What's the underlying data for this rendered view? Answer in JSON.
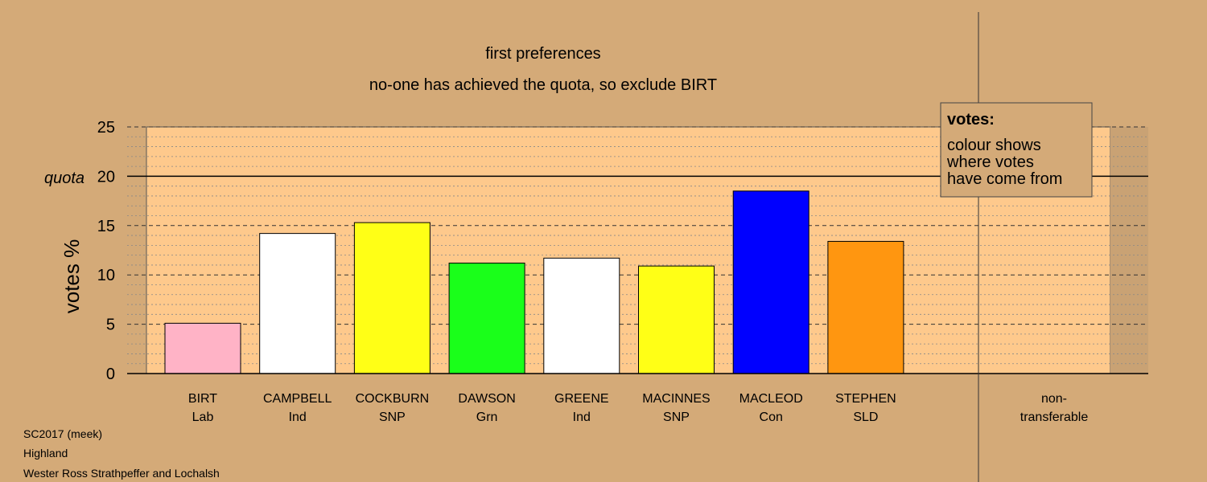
{
  "chart_data": {
    "type": "bar",
    "title": "first preferences",
    "subtitle": "no-one has achieved the quota, so exclude BIRT",
    "ylabel": "votes %",
    "ylim": [
      0,
      25
    ],
    "yticks": [
      0,
      5,
      10,
      15,
      20,
      25
    ],
    "quota_label": "quota",
    "quota_value": 20,
    "categories": [
      {
        "name": "BIRT",
        "party": "Lab"
      },
      {
        "name": "CAMPBELL",
        "party": "Ind"
      },
      {
        "name": "COCKBURN",
        "party": "SNP"
      },
      {
        "name": "DAWSON",
        "party": "Grn"
      },
      {
        "name": "GREENE",
        "party": "Ind"
      },
      {
        "name": "MACINNES",
        "party": "SNP"
      },
      {
        "name": "MACLEOD",
        "party": "Con"
      },
      {
        "name": "STEPHEN",
        "party": "SLD"
      }
    ],
    "values": [
      5.1,
      14.2,
      15.3,
      11.2,
      11.7,
      10.9,
      18.5,
      13.4
    ],
    "colors": [
      "#ffb3c6",
      "#ffffff",
      "#ffff16",
      "#1aff1a",
      "#ffffff",
      "#ffff16",
      "#0000ff",
      "#ff9610"
    ],
    "nontransferable": {
      "line1": "non-",
      "line2": "transferable",
      "value": 0
    },
    "legend": {
      "title": "votes:",
      "lines": [
        "colour shows",
        "where votes",
        "have come from"
      ],
      "placement": "top-right"
    },
    "grid": true,
    "colors_theme": {
      "background": "#d4aa78",
      "plot": "#fec98c"
    }
  },
  "footer": {
    "line1": "SC2017 (meek)",
    "line2": "Highland",
    "line3": "Wester Ross Strathpeffer and Lochalsh"
  }
}
